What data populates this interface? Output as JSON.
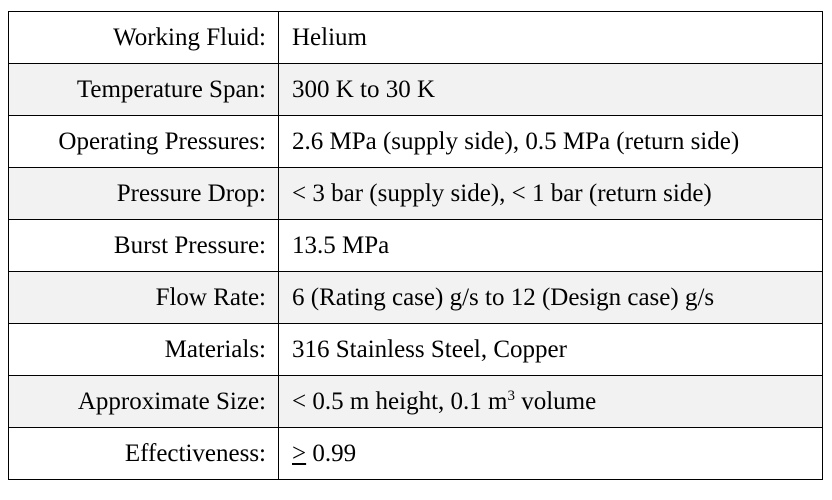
{
  "table": {
    "rows": [
      {
        "label": "Working Fluid:",
        "value": "Helium"
      },
      {
        "label": "Temperature Span:",
        "value": "300 K to 30 K"
      },
      {
        "label": "Operating Pressures:",
        "value": "2.6 MPa (supply side), 0.5 MPa (return side)"
      },
      {
        "label": "Pressure Drop:",
        "value": "< 3 bar (supply side), < 1 bar (return side)"
      },
      {
        "label": "Burst Pressure:",
        "value": "13.5 MPa"
      },
      {
        "label": "Flow Rate:",
        "value": "6 (Rating case) g/s to 12 (Design case) g/s"
      },
      {
        "label": "Materials:",
        "value": "316 Stainless Steel, Copper"
      },
      {
        "label": "Approximate Size:",
        "value_prefix": "< 0.5 m height, 0.1 m",
        "value_sup": "3",
        "value_suffix": " volume"
      },
      {
        "label": "Effectiveness:",
        "value_symbol": ">",
        "value_rest": " 0.99"
      }
    ]
  }
}
